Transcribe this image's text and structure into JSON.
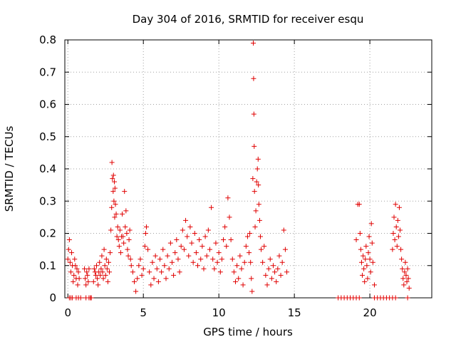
{
  "chart_data": {
    "type": "scatter",
    "title": "Day 304 of 2016, SRMTID for receiver esqu",
    "xlabel": "GPS time / hours",
    "ylabel": "SRMTID / TECUs",
    "xlim": [
      -0.2,
      24.1
    ],
    "ylim": [
      0,
      0.8
    ],
    "x_ticks": [
      0,
      5,
      10,
      15,
      20
    ],
    "x_tick_labels": [
      "0",
      "5",
      "10",
      "15",
      "20"
    ],
    "y_ticks": [
      0,
      0.1,
      0.2,
      0.3,
      0.4,
      0.5,
      0.6,
      0.7,
      0.8
    ],
    "y_tick_labels": [
      "0",
      "0.1",
      "0.2",
      "0.3",
      "0.4",
      "0.5",
      "0.6",
      "0.7",
      "0.8"
    ],
    "grid": true,
    "marker": "+",
    "color": "#e00000",
    "series": [
      {
        "name": "SRMTID",
        "points": [
          [
            0.0,
            0.12
          ],
          [
            0.05,
            0.15
          ],
          [
            0.1,
            0.18
          ],
          [
            0.15,
            0.11
          ],
          [
            0.2,
            0.08
          ],
          [
            0.25,
            0.14
          ],
          [
            0.3,
            0.1
          ],
          [
            0.35,
            0.05
          ],
          [
            0.4,
            0.07
          ],
          [
            0.45,
            0.12
          ],
          [
            0.5,
            0.1
          ],
          [
            0.55,
            0.06
          ],
          [
            0.6,
            0.09
          ],
          [
            0.65,
            0.04
          ],
          [
            0.7,
            0.08
          ],
          [
            0.75,
            0.06
          ],
          [
            0.1,
            0.0
          ],
          [
            0.2,
            0.0
          ],
          [
            0.3,
            0.0
          ],
          [
            0.55,
            0.0
          ],
          [
            0.7,
            0.0
          ],
          [
            0.85,
            0.0
          ],
          [
            1.2,
            0.0
          ],
          [
            1.4,
            0.0
          ],
          [
            1.5,
            0.0
          ],
          [
            1.55,
            0.0
          ],
          [
            1.1,
            0.09
          ],
          [
            1.15,
            0.06
          ],
          [
            1.2,
            0.04
          ],
          [
            1.25,
            0.08
          ],
          [
            1.3,
            0.07
          ],
          [
            1.35,
            0.05
          ],
          [
            1.4,
            0.09
          ],
          [
            1.7,
            0.05
          ],
          [
            1.75,
            0.09
          ],
          [
            1.8,
            0.08
          ],
          [
            1.85,
            0.07
          ],
          [
            1.9,
            0.1
          ],
          [
            1.95,
            0.06
          ],
          [
            2.0,
            0.04
          ],
          [
            2.05,
            0.08
          ],
          [
            2.1,
            0.11
          ],
          [
            2.15,
            0.07
          ],
          [
            2.2,
            0.09
          ],
          [
            2.25,
            0.13
          ],
          [
            2.3,
            0.08
          ],
          [
            2.35,
            0.06
          ],
          [
            2.4,
            0.15
          ],
          [
            2.45,
            0.1
          ],
          [
            2.5,
            0.07
          ],
          [
            2.55,
            0.12
          ],
          [
            2.6,
            0.09
          ],
          [
            2.65,
            0.05
          ],
          [
            2.7,
            0.11
          ],
          [
            2.75,
            0.08
          ],
          [
            2.8,
            0.14
          ],
          [
            2.85,
            0.21
          ],
          [
            2.9,
            0.28
          ],
          [
            2.92,
            0.42
          ],
          [
            2.95,
            0.37
          ],
          [
            3.0,
            0.33
          ],
          [
            3.02,
            0.38
          ],
          [
            3.05,
            0.3
          ],
          [
            3.08,
            0.36
          ],
          [
            3.1,
            0.25
          ],
          [
            3.12,
            0.34
          ],
          [
            3.15,
            0.29
          ],
          [
            3.2,
            0.26
          ],
          [
            3.25,
            0.19
          ],
          [
            3.3,
            0.22
          ],
          [
            3.35,
            0.18
          ],
          [
            3.4,
            0.16
          ],
          [
            3.45,
            0.21
          ],
          [
            3.5,
            0.14
          ],
          [
            3.55,
            0.19
          ],
          [
            3.6,
            0.26
          ],
          [
            3.65,
            0.19
          ],
          [
            3.7,
            0.17
          ],
          [
            3.75,
            0.33
          ],
          [
            3.8,
            0.22
          ],
          [
            3.85,
            0.27
          ],
          [
            3.9,
            0.2
          ],
          [
            3.95,
            0.15
          ],
          [
            4.0,
            0.13
          ],
          [
            4.05,
            0.18
          ],
          [
            4.1,
            0.21
          ],
          [
            4.15,
            0.12
          ],
          [
            4.2,
            0.1
          ],
          [
            4.3,
            0.08
          ],
          [
            4.4,
            0.05
          ],
          [
            4.5,
            0.02
          ],
          [
            4.6,
            0.06
          ],
          [
            4.7,
            0.1
          ],
          [
            4.8,
            0.12
          ],
          [
            4.9,
            0.07
          ],
          [
            5.0,
            0.09
          ],
          [
            5.1,
            0.16
          ],
          [
            5.15,
            0.2
          ],
          [
            5.2,
            0.22
          ],
          [
            5.3,
            0.15
          ],
          [
            5.4,
            0.08
          ],
          [
            5.5,
            0.04
          ],
          [
            5.6,
            0.11
          ],
          [
            5.7,
            0.06
          ],
          [
            5.8,
            0.13
          ],
          [
            5.9,
            0.09
          ],
          [
            6.0,
            0.05
          ],
          [
            6.1,
            0.12
          ],
          [
            6.2,
            0.08
          ],
          [
            6.3,
            0.15
          ],
          [
            6.4,
            0.1
          ],
          [
            6.5,
            0.06
          ],
          [
            6.6,
            0.13
          ],
          [
            6.7,
            0.09
          ],
          [
            6.8,
            0.17
          ],
          [
            6.9,
            0.11
          ],
          [
            7.0,
            0.07
          ],
          [
            7.1,
            0.14
          ],
          [
            7.2,
            0.18
          ],
          [
            7.3,
            0.12
          ],
          [
            7.4,
            0.08
          ],
          [
            7.5,
            0.16
          ],
          [
            7.6,
            0.21
          ],
          [
            7.7,
            0.15
          ],
          [
            7.8,
            0.24
          ],
          [
            7.9,
            0.19
          ],
          [
            8.0,
            0.13
          ],
          [
            8.1,
            0.22
          ],
          [
            8.2,
            0.17
          ],
          [
            8.3,
            0.11
          ],
          [
            8.4,
            0.2
          ],
          [
            8.5,
            0.14
          ],
          [
            8.6,
            0.1
          ],
          [
            8.7,
            0.18
          ],
          [
            8.8,
            0.12
          ],
          [
            8.9,
            0.16
          ],
          [
            9.0,
            0.09
          ],
          [
            9.1,
            0.19
          ],
          [
            9.2,
            0.13
          ],
          [
            9.3,
            0.21
          ],
          [
            9.4,
            0.15
          ],
          [
            9.5,
            0.28
          ],
          [
            9.6,
            0.12
          ],
          [
            9.7,
            0.09
          ],
          [
            9.8,
            0.17
          ],
          [
            9.9,
            0.11
          ],
          [
            10.0,
            0.14
          ],
          [
            10.1,
            0.08
          ],
          [
            10.2,
            0.12
          ],
          [
            10.3,
            0.18
          ],
          [
            10.4,
            0.22
          ],
          [
            10.5,
            0.16
          ],
          [
            10.6,
            0.31
          ],
          [
            10.7,
            0.25
          ],
          [
            10.8,
            0.18
          ],
          [
            10.9,
            0.12
          ],
          [
            11.0,
            0.08
          ],
          [
            11.1,
            0.05
          ],
          [
            11.2,
            0.1
          ],
          [
            11.3,
            0.06
          ],
          [
            11.4,
            0.13
          ],
          [
            11.5,
            0.09
          ],
          [
            11.6,
            0.04
          ],
          [
            11.7,
            0.11
          ],
          [
            11.8,
            0.16
          ],
          [
            11.9,
            0.19
          ],
          [
            12.0,
            0.14
          ],
          [
            12.05,
            0.2
          ],
          [
            12.1,
            0.11
          ],
          [
            12.15,
            0.06
          ],
          [
            12.2,
            0.02
          ],
          [
            12.25,
            0.37
          ],
          [
            12.28,
            0.79
          ],
          [
            12.3,
            0.68
          ],
          [
            12.32,
            0.57
          ],
          [
            12.34,
            0.47
          ],
          [
            12.36,
            0.33
          ],
          [
            12.4,
            0.22
          ],
          [
            12.45,
            0.27
          ],
          [
            12.5,
            0.36
          ],
          [
            12.55,
            0.4
          ],
          [
            12.6,
            0.43
          ],
          [
            12.62,
            0.35
          ],
          [
            12.65,
            0.29
          ],
          [
            12.7,
            0.24
          ],
          [
            12.75,
            0.19
          ],
          [
            12.8,
            0.15
          ],
          [
            12.9,
            0.11
          ],
          [
            13.0,
            0.16
          ],
          [
            13.1,
            0.07
          ],
          [
            13.2,
            0.04
          ],
          [
            13.3,
            0.09
          ],
          [
            13.4,
            0.12
          ],
          [
            13.5,
            0.06
          ],
          [
            13.6,
            0.1
          ],
          [
            13.7,
            0.08
          ],
          [
            13.8,
            0.05
          ],
          [
            13.9,
            0.09
          ],
          [
            14.0,
            0.13
          ],
          [
            14.1,
            0.07
          ],
          [
            14.2,
            0.11
          ],
          [
            14.3,
            0.21
          ],
          [
            14.4,
            0.15
          ],
          [
            14.5,
            0.08
          ],
          [
            17.9,
            0.0
          ],
          [
            18.1,
            0.0
          ],
          [
            18.3,
            0.0
          ],
          [
            18.5,
            0.0
          ],
          [
            18.7,
            0.0
          ],
          [
            18.9,
            0.0
          ],
          [
            19.1,
            0.0
          ],
          [
            19.3,
            0.0
          ],
          [
            20.3,
            0.0
          ],
          [
            20.5,
            0.0
          ],
          [
            20.7,
            0.0
          ],
          [
            20.9,
            0.0
          ],
          [
            21.1,
            0.0
          ],
          [
            21.3,
            0.0
          ],
          [
            21.5,
            0.0
          ],
          [
            21.7,
            0.0
          ],
          [
            22.5,
            0.0
          ],
          [
            19.1,
            0.18
          ],
          [
            19.2,
            0.29
          ],
          [
            19.3,
            0.29
          ],
          [
            19.35,
            0.2
          ],
          [
            19.4,
            0.15
          ],
          [
            19.45,
            0.11
          ],
          [
            19.5,
            0.07
          ],
          [
            19.55,
            0.13
          ],
          [
            19.6,
            0.09
          ],
          [
            19.65,
            0.05
          ],
          [
            19.7,
            0.12
          ],
          [
            19.75,
            0.16
          ],
          [
            19.8,
            0.1
          ],
          [
            19.85,
            0.06
          ],
          [
            19.9,
            0.14
          ],
          [
            19.95,
            0.19
          ],
          [
            20.0,
            0.12
          ],
          [
            20.05,
            0.08
          ],
          [
            20.1,
            0.23
          ],
          [
            20.15,
            0.17
          ],
          [
            20.2,
            0.11
          ],
          [
            20.3,
            0.04
          ],
          [
            21.5,
            0.15
          ],
          [
            21.55,
            0.2
          ],
          [
            21.6,
            0.25
          ],
          [
            21.65,
            0.18
          ],
          [
            21.7,
            0.29
          ],
          [
            21.75,
            0.22
          ],
          [
            21.8,
            0.16
          ],
          [
            21.85,
            0.24
          ],
          [
            21.9,
            0.19
          ],
          [
            21.95,
            0.28
          ],
          [
            22.0,
            0.21
          ],
          [
            22.05,
            0.15
          ],
          [
            22.1,
            0.12
          ],
          [
            22.15,
            0.09
          ],
          [
            22.2,
            0.06
          ],
          [
            22.25,
            0.04
          ],
          [
            22.3,
            0.08
          ],
          [
            22.35,
            0.11
          ],
          [
            22.4,
            0.07
          ],
          [
            22.45,
            0.05
          ],
          [
            22.5,
            0.09
          ],
          [
            22.55,
            0.06
          ],
          [
            22.6,
            0.03
          ]
        ]
      }
    ]
  }
}
